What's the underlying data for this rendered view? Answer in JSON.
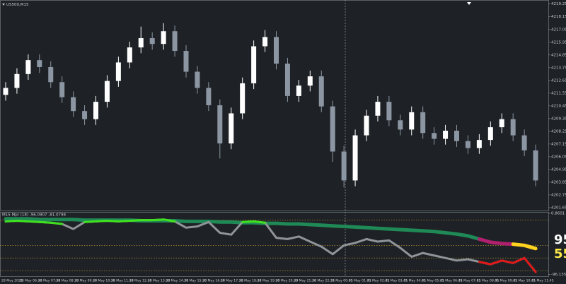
{
  "window": {
    "title": "US500,M15"
  },
  "chart_data": [
    {
      "type": "candlestick",
      "up_color": "#ffffff",
      "down_color": "#8c96a3",
      "ylim": [
        4201.4,
        4219.6
      ],
      "yticks": [
        4219.25,
        4218.15,
        4217.05,
        4215.95,
        4214.85,
        4213.75,
        4212.65,
        4211.55,
        4210.45,
        4209.35,
        4208.25,
        4207.15,
        4206.05,
        4204.95,
        4203.85,
        4202.75,
        4201.65
      ],
      "open": [
        4211.4,
        4212.0,
        4213.2,
        4214.4,
        4213.8,
        4212.5,
        4211.2,
        4210.0,
        4209.3,
        4210.8,
        4212.6,
        4214.2,
        4215.5,
        4216.3,
        4215.8,
        4216.9,
        4215.2,
        4213.4,
        4212.0,
        4210.5,
        4207.2,
        4209.8,
        4212.4,
        4215.6,
        4216.4,
        4214.1,
        4211.3,
        4212.2,
        4213.0,
        4210.4,
        4206.5,
        4204.0,
        4207.9,
        4209.6,
        4210.8,
        4209.2,
        4208.4,
        4209.9,
        4208.1,
        4207.6,
        4208.3,
        4207.4,
        4206.8,
        4207.5,
        4208.6,
        4209.3,
        4207.9,
        4206.6
      ],
      "high": [
        4212.5,
        4213.7,
        4214.9,
        4214.9,
        4214.3,
        4213.0,
        4211.7,
        4210.5,
        4211.3,
        4213.1,
        4214.7,
        4216.0,
        4217.3,
        4216.8,
        4217.6,
        4217.4,
        4215.7,
        4213.9,
        4212.5,
        4211.0,
        4210.3,
        4212.9,
        4216.1,
        4217.0,
        4216.9,
        4214.6,
        4212.7,
        4213.5,
        4213.5,
        4210.9,
        4207.0,
        4208.4,
        4210.1,
        4211.3,
        4211.3,
        4209.7,
        4210.4,
        4210.4,
        4208.6,
        4208.8,
        4208.8,
        4207.9,
        4208.0,
        4209.1,
        4209.8,
        4209.8,
        4208.4,
        4207.1
      ],
      "low": [
        4210.9,
        4211.5,
        4212.7,
        4213.3,
        4212.0,
        4210.7,
        4209.5,
        4208.8,
        4208.8,
        4210.3,
        4212.1,
        4213.7,
        4215.0,
        4215.3,
        4215.3,
        4214.7,
        4212.9,
        4211.5,
        4210.0,
        4205.9,
        4206.7,
        4209.3,
        4211.9,
        4215.1,
        4213.6,
        4210.8,
        4210.8,
        4211.7,
        4209.9,
        4205.6,
        4203.4,
        4203.5,
        4207.4,
        4209.1,
        4208.7,
        4207.9,
        4207.9,
        4207.6,
        4207.1,
        4207.1,
        4206.9,
        4206.3,
        4206.3,
        4207.0,
        4208.1,
        4207.4,
        4206.1,
        4203.5
      ],
      "close": [
        4212.0,
        4213.2,
        4214.4,
        4213.8,
        4212.5,
        4211.2,
        4210.0,
        4209.3,
        4210.8,
        4212.6,
        4214.2,
        4215.5,
        4216.3,
        4215.8,
        4216.9,
        4215.2,
        4213.4,
        4212.0,
        4210.5,
        4207.2,
        4209.8,
        4212.4,
        4215.6,
        4216.4,
        4214.1,
        4211.3,
        4212.2,
        4213.0,
        4210.4,
        4206.5,
        4204.0,
        4207.9,
        4209.6,
        4210.8,
        4209.2,
        4208.4,
        4209.9,
        4208.1,
        4207.6,
        4208.3,
        4207.4,
        4206.8,
        4207.5,
        4208.6,
        4209.3,
        4207.9,
        4206.6,
        4204.0
      ]
    },
    {
      "type": "line",
      "title": "M15 Mpr (18) -96.0907 -81.0798",
      "ylim": [
        -100,
        3
      ],
      "yticks": [
        0.8601,
        -96.1357
      ],
      "levels": [
        -10,
        -50,
        -70,
        -90
      ],
      "level_color": "#c8a030",
      "annotations": [
        {
          "text": "95",
          "color": "#ffffff"
        },
        {
          "text": "55",
          "color": "#ffe94a"
        }
      ],
      "series": [
        {
          "color": "#1f8a55",
          "width": 5,
          "values": [
            -8,
            -8,
            -8,
            -9,
            -9,
            -9,
            -9,
            -10,
            -10,
            -10,
            -10,
            -10,
            -11,
            -11,
            -11,
            -11,
            -12,
            -12,
            -12,
            -13,
            -13,
            -14,
            -14,
            -15,
            -15,
            -16,
            -16,
            -17,
            -18,
            -19,
            -20,
            -21,
            -22,
            -23,
            -24,
            -25,
            -26,
            -27,
            -28,
            -30,
            -32,
            -35,
            -40,
            null,
            null,
            null,
            null,
            null
          ]
        },
        {
          "color": "#b0206e",
          "width": 5,
          "values": [
            null,
            null,
            null,
            null,
            null,
            null,
            null,
            null,
            null,
            null,
            null,
            null,
            null,
            null,
            null,
            null,
            null,
            null,
            null,
            null,
            null,
            null,
            null,
            null,
            null,
            null,
            null,
            null,
            null,
            null,
            null,
            null,
            null,
            null,
            null,
            null,
            null,
            null,
            null,
            null,
            null,
            null,
            -40,
            -45,
            -47,
            -48,
            null,
            null
          ]
        },
        {
          "color": "#ffd21f",
          "width": 5,
          "values": [
            null,
            null,
            null,
            null,
            null,
            null,
            null,
            null,
            null,
            null,
            null,
            null,
            null,
            null,
            null,
            null,
            null,
            null,
            null,
            null,
            null,
            null,
            null,
            null,
            null,
            null,
            null,
            null,
            null,
            null,
            null,
            null,
            null,
            null,
            null,
            null,
            null,
            null,
            null,
            null,
            null,
            null,
            null,
            null,
            null,
            -48,
            -50,
            -55
          ]
        },
        {
          "color": "#8f9499",
          "width": 3,
          "values": [
            -12,
            -11,
            -12,
            -13,
            -14,
            -16,
            -24,
            -13,
            -12,
            -11,
            -12,
            -11,
            -10,
            -10,
            -9,
            -12,
            -22,
            -20,
            -13,
            -30,
            -33,
            -13,
            -12,
            -14,
            -38,
            -40,
            -36,
            -44,
            -52,
            -64,
            -50,
            -46,
            -40,
            -44,
            -42,
            -54,
            -68,
            -62,
            -66,
            -70,
            -74,
            -72,
            -76,
            -80,
            -74,
            -78,
            -70,
            -92
          ]
        },
        {
          "color": "#3ee21c",
          "width": 3,
          "values": [
            -12,
            -11,
            -12,
            -13,
            -14,
            -16,
            null,
            -13,
            -12,
            -11,
            -12,
            -11,
            -10,
            -10,
            -9,
            -12,
            null,
            null,
            null,
            null,
            null,
            -13,
            -12,
            -14,
            null,
            null,
            null,
            null,
            null,
            null,
            null,
            null,
            null,
            null,
            null,
            null,
            null,
            null,
            null,
            null,
            null,
            null,
            null,
            null,
            null,
            null,
            null,
            null
          ]
        },
        {
          "color": "#e01818",
          "width": 3,
          "values": [
            null,
            null,
            null,
            null,
            null,
            null,
            null,
            null,
            null,
            null,
            null,
            null,
            null,
            null,
            null,
            null,
            null,
            null,
            null,
            null,
            null,
            null,
            null,
            null,
            null,
            null,
            null,
            null,
            null,
            null,
            null,
            null,
            null,
            null,
            null,
            null,
            null,
            null,
            null,
            null,
            null,
            null,
            -76,
            -80,
            -74,
            -78,
            -70,
            -92
          ]
        }
      ]
    }
  ],
  "time_axis": {
    "labels": [
      "28 May 2021",
      "28 May 06:30",
      "28 May 07:30",
      "28 May 08:30",
      "28 May 09:30",
      "28 May 10:30",
      "28 May 11:30",
      "28 May 12:30",
      "28 May 13:30",
      "28 May 14:30",
      "28 May 15:30",
      "28 May 16:30",
      "28 May 17:30",
      "28 May 18:30",
      "28 May 19:30",
      "28 May 20:30",
      "28 May 21:30",
      "28 May 22:30",
      "31 May 00:45",
      "31 May 01:45",
      "31 May 02:45",
      "31 May 03:45",
      "31 May 04:45",
      "31 May 05:45",
      "31 May 06:45",
      "31 May 07:45",
      "31 May 08:45",
      "31 May 09:45",
      "31 May 10:45",
      "31 May 11:45"
    ]
  }
}
